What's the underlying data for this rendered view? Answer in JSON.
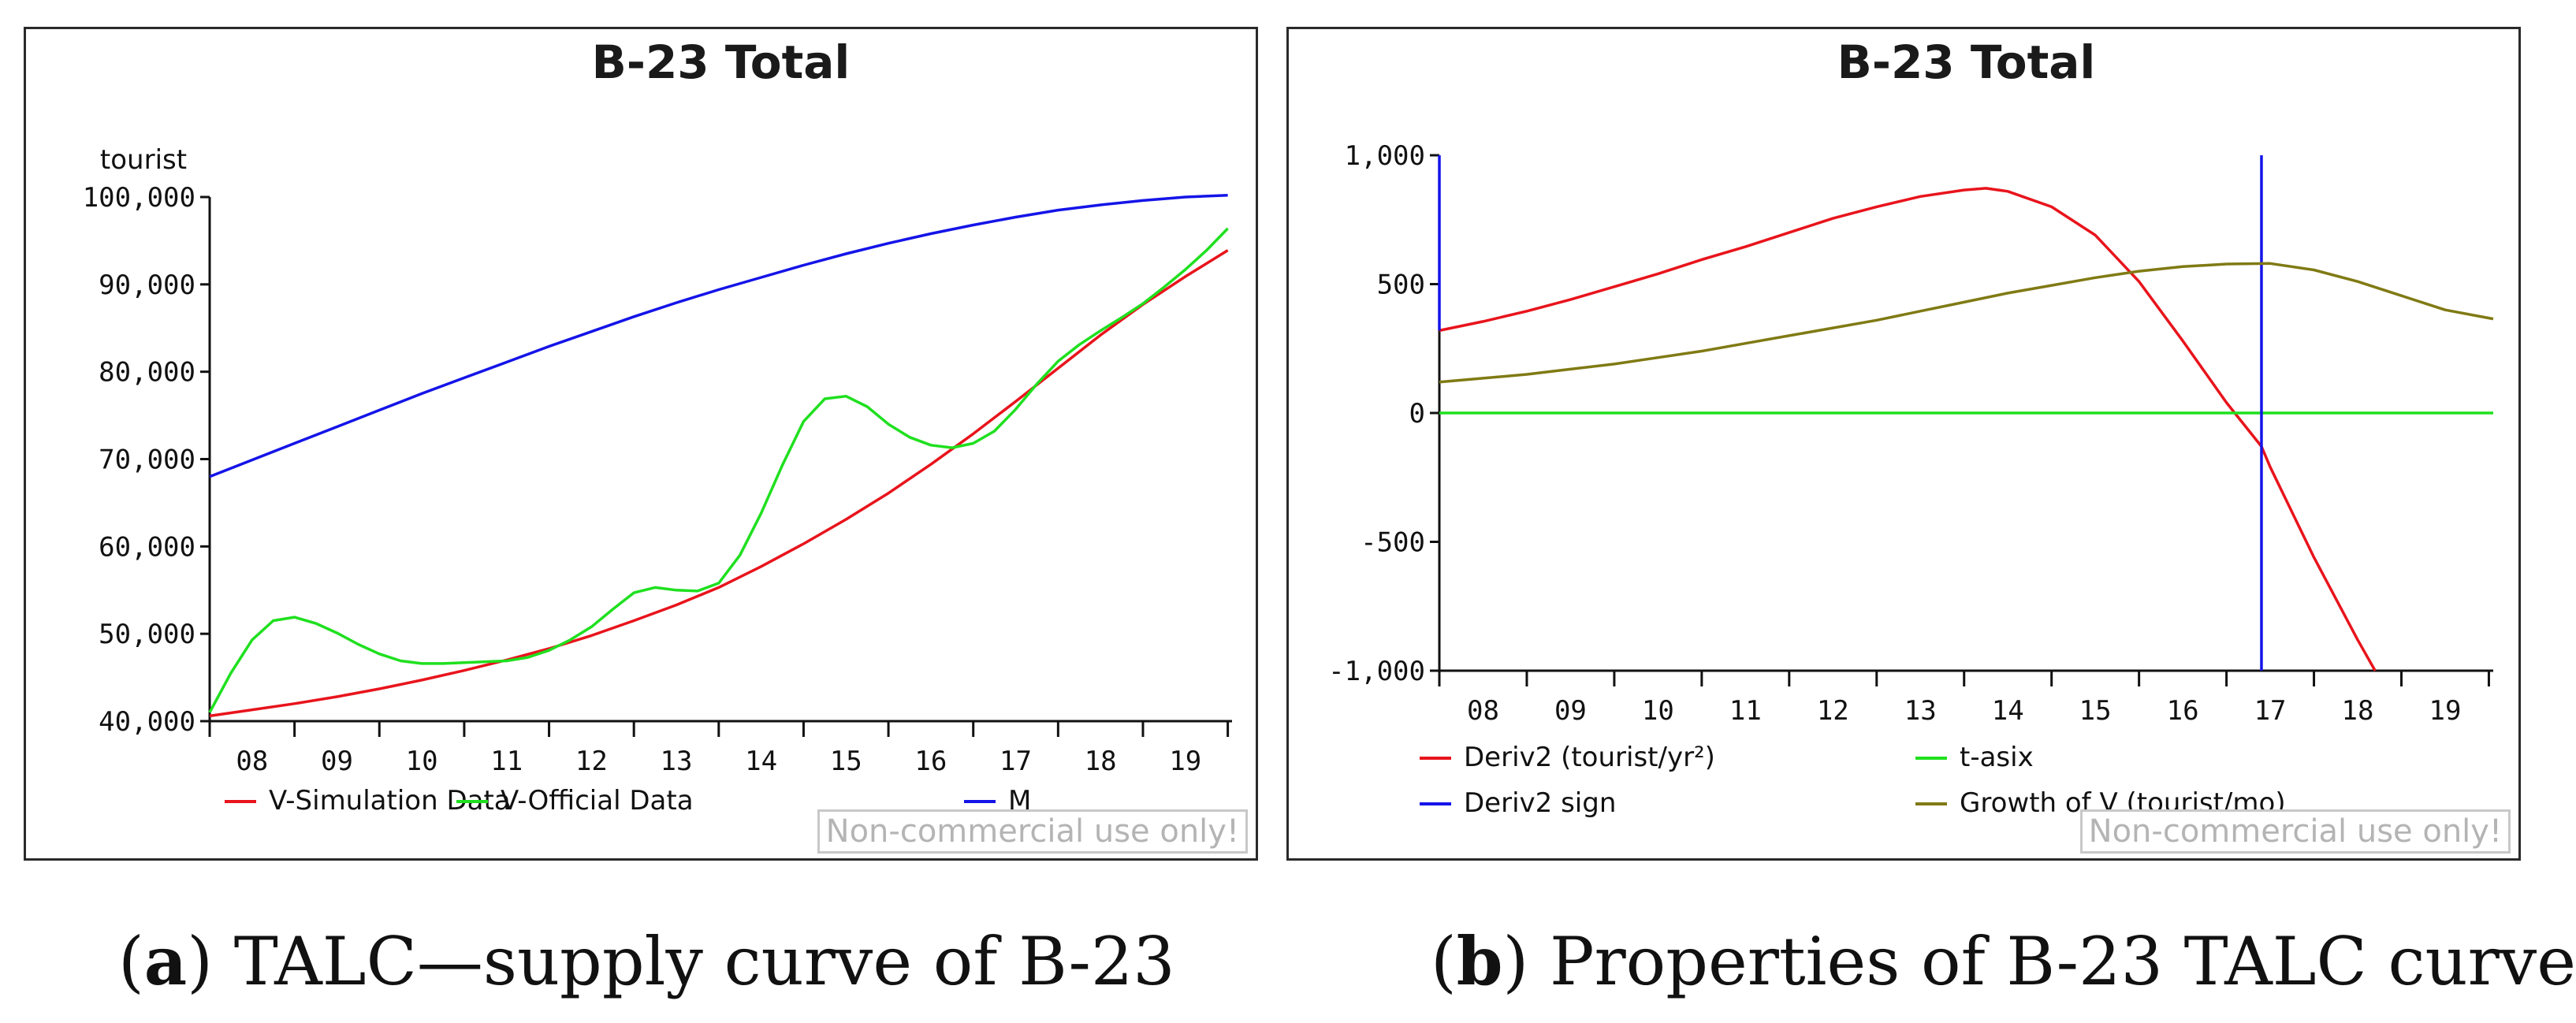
{
  "chart_data": [
    {
      "type": "line",
      "title": "B-23 Total",
      "ylabel": "tourist",
      "xlabel": "",
      "xlim": [
        7.5,
        19.55
      ],
      "ylim": [
        40000,
        100000
      ],
      "y_ticks": [
        40000,
        50000,
        60000,
        70000,
        80000,
        90000,
        100000
      ],
      "y_tick_labels": [
        "40,000",
        "50,000",
        "60,000",
        "70,000",
        "80,000",
        "90,000",
        "100,000"
      ],
      "x_ticks": [
        8,
        9,
        10,
        11,
        12,
        13,
        14,
        15,
        16,
        17,
        18,
        19
      ],
      "x_tick_labels": [
        "08",
        "09",
        "10",
        "11",
        "12",
        "13",
        "14",
        "15",
        "16",
        "17",
        "18",
        "19"
      ],
      "series": [
        {
          "name": "V-Simulation Data",
          "color": "#e8141c",
          "x": [
            7.5,
            8,
            8.5,
            9,
            9.5,
            10,
            10.5,
            11,
            11.5,
            12,
            12.5,
            13,
            13.5,
            14,
            14.5,
            15,
            15.5,
            16,
            16.5,
            17,
            17.5,
            18,
            18.5,
            19,
            19.5
          ],
          "y": [
            40600,
            41300,
            42000,
            42800,
            43700,
            44700,
            45800,
            47000,
            48300,
            49800,
            51500,
            53300,
            55300,
            57700,
            60300,
            63100,
            66100,
            69400,
            72900,
            76600,
            80400,
            84200,
            87700,
            90900,
            93900
          ]
        },
        {
          "name": "V-Official Data",
          "color": "#1fe01f",
          "x": [
            7.5,
            7.75,
            8,
            8.25,
            8.5,
            8.75,
            9,
            9.25,
            9.5,
            9.75,
            10,
            10.25,
            10.5,
            10.75,
            11,
            11.25,
            11.5,
            11.75,
            12,
            12.25,
            12.5,
            12.75,
            13,
            13.25,
            13.5,
            13.75,
            14,
            14.25,
            14.5,
            14.75,
            15,
            15.25,
            15.5,
            15.75,
            16,
            16.25,
            16.5,
            16.75,
            17,
            17.25,
            17.5,
            17.75,
            18,
            18.25,
            18.5,
            18.75,
            19,
            19.25,
            19.5
          ],
          "y": [
            41000,
            45500,
            49300,
            51500,
            51900,
            51200,
            50100,
            48800,
            47700,
            46900,
            46600,
            46600,
            46700,
            46800,
            46900,
            47300,
            48100,
            49300,
            50800,
            52800,
            54700,
            55300,
            55000,
            54900,
            55800,
            59000,
            63800,
            69300,
            74300,
            76900,
            77200,
            76000,
            74000,
            72500,
            71600,
            71300,
            71800,
            73200,
            75700,
            78600,
            81200,
            83100,
            84700,
            86200,
            87800,
            89700,
            91700,
            93900,
            96400
          ]
        },
        {
          "name": "M",
          "color": "#1414e8",
          "x": [
            7.5,
            8,
            8.5,
            9,
            9.5,
            10,
            10.5,
            11,
            11.5,
            12,
            12.5,
            13,
            13.5,
            14,
            14.5,
            15,
            15.5,
            16,
            16.5,
            17,
            17.5,
            18,
            18.5,
            19,
            19.5
          ],
          "y": [
            68000,
            69900,
            71800,
            73700,
            75600,
            77500,
            79300,
            81100,
            82900,
            84600,
            86300,
            87900,
            89400,
            90800,
            92200,
            93500,
            94700,
            95800,
            96800,
            97700,
            98500,
            99100,
            99600,
            100000,
            100200
          ]
        }
      ],
      "legend": [
        "V-Simulation Data",
        "V-Official Data",
        "M"
      ]
    },
    {
      "type": "line",
      "title": "B-23 Total",
      "xlabel": "",
      "ylabel": "",
      "xlim": [
        7.5,
        19.55
      ],
      "ylim": [
        -1000,
        1000
      ],
      "y_ticks": [
        -1000,
        -500,
        0,
        500,
        1000
      ],
      "y_tick_labels": [
        "-1,000",
        "-500",
        "0",
        "500",
        "1,000"
      ],
      "x_ticks": [
        8,
        9,
        10,
        11,
        12,
        13,
        14,
        15,
        16,
        17,
        18,
        19
      ],
      "x_tick_labels": [
        "08",
        "09",
        "10",
        "11",
        "12",
        "13",
        "14",
        "15",
        "16",
        "17",
        "18",
        "19"
      ],
      "series": [
        {
          "name": "Deriv2 (tourist/yr²)",
          "color": "#e8141c",
          "x": [
            7.5,
            8,
            8.5,
            9,
            9.5,
            10,
            10.5,
            11,
            11.5,
            12,
            12.5,
            13,
            13.5,
            13.75,
            14,
            14.5,
            15,
            15.5,
            16,
            16.5,
            16.9,
            17,
            17.5,
            18,
            18.2
          ],
          "y": [
            320,
            355,
            395,
            440,
            490,
            540,
            595,
            645,
            700,
            755,
            800,
            840,
            865,
            872,
            860,
            800,
            690,
            510,
            280,
            40,
            -130,
            -210,
            -560,
            -880,
            -1000
          ]
        },
        {
          "name": "t-asix",
          "color": "#1fe01f",
          "x": [
            7.5,
            19.55
          ],
          "y": [
            0,
            0
          ]
        },
        {
          "name": "Deriv2 sign",
          "color": "#1414e8",
          "segments": [
            {
              "x": [
                7.5,
                7.5
              ],
              "y": [
                1000,
                320
              ]
            },
            {
              "x": [
                16.9,
                16.9
              ],
              "y": [
                1000,
                -1000
              ]
            }
          ]
        },
        {
          "name": "Growth of V (tourist/mo)",
          "color": "#807a14",
          "x": [
            7.5,
            8,
            8.5,
            9,
            9.5,
            10,
            10.5,
            11,
            11.5,
            12,
            12.5,
            13,
            13.5,
            14,
            14.5,
            15,
            15.5,
            16,
            16.5,
            17,
            17.5,
            18,
            18.5,
            19,
            19.55
          ],
          "y": [
            120,
            135,
            150,
            170,
            190,
            215,
            240,
            270,
            300,
            330,
            360,
            395,
            430,
            465,
            495,
            525,
            550,
            568,
            578,
            580,
            555,
            510,
            455,
            400,
            365
          ]
        }
      ],
      "legend": [
        "Deriv2 (tourist/yr²)",
        "t-asix",
        "Deriv2 sign",
        "Growth of V (tourist/mo)"
      ]
    }
  ],
  "watermark": "Non-commercial use only!",
  "captions": [
    {
      "letter": "a",
      "text": "TALC—supply curve of B-23"
    },
    {
      "letter": "b",
      "text": "Properties of B-23 TALC curve"
    }
  ]
}
